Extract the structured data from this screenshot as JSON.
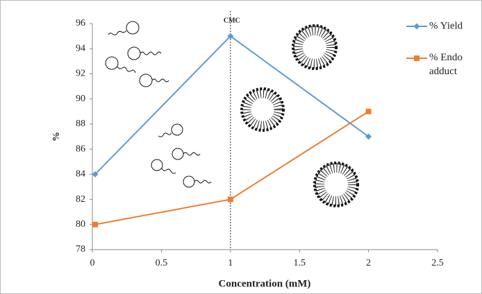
{
  "chart_data": {
    "type": "line",
    "x_label": "Concentration (mM)",
    "y_label": "%",
    "series": [
      {
        "name": "% Yield",
        "color": "#5b9bd5",
        "marker": "diamond",
        "x": [
          0.02,
          1,
          2
        ],
        "values": [
          84,
          95,
          87
        ]
      },
      {
        "name": "% Endo adduct",
        "color": "#ed7d31",
        "marker": "square",
        "x": [
          0.02,
          1,
          2
        ],
        "values": [
          80,
          82,
          89
        ]
      }
    ],
    "xlim": [
      0,
      2.5
    ],
    "xticks": [
      0,
      0.5,
      1,
      1.5,
      2,
      2.5
    ],
    "ylim": [
      78,
      96
    ],
    "yticks": [
      78,
      80,
      82,
      84,
      86,
      88,
      90,
      92,
      94,
      96
    ],
    "grid": false,
    "legend": "right",
    "annotation": {
      "text": "CMC",
      "x": 1
    }
  }
}
